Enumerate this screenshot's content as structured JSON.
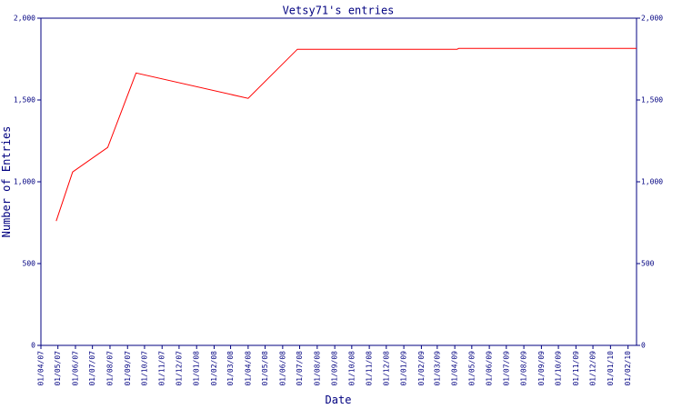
{
  "chart_data": {
    "type": "line",
    "title": "Vetsy71's entries",
    "x_label": "Date",
    "y_label": "Number of Entries",
    "x": [
      "2007-04-28",
      "2007-05-27",
      "2007-07-28",
      "2007-09-16",
      "2008-04-01",
      "2008-06-27",
      "2009-04-05",
      "2009-04-08",
      "2010-02-16"
    ],
    "series": [
      {
        "name": "Vetsy71",
        "color": "#ff0000",
        "values": [
          760,
          1060,
          1210,
          1665,
          1510,
          1810,
          1810,
          1815,
          1815
        ]
      }
    ],
    "xlim": [
      "2007-04-01",
      "2010-02-16"
    ],
    "xticks": [
      {
        "value": "2007-04-01",
        "label": "01/04/07"
      },
      {
        "value": "2007-05-01",
        "label": "01/05/07"
      },
      {
        "value": "2007-06-01",
        "label": "01/06/07"
      },
      {
        "value": "2007-07-01",
        "label": "01/07/07"
      },
      {
        "value": "2007-08-01",
        "label": "01/08/07"
      },
      {
        "value": "2007-09-01",
        "label": "01/09/07"
      },
      {
        "value": "2007-10-01",
        "label": "01/10/07"
      },
      {
        "value": "2007-11-01",
        "label": "01/11/07"
      },
      {
        "value": "2007-12-01",
        "label": "01/12/07"
      },
      {
        "value": "2008-01-01",
        "label": "01/01/08"
      },
      {
        "value": "2008-02-01",
        "label": "01/02/08"
      },
      {
        "value": "2008-03-01",
        "label": "01/03/08"
      },
      {
        "value": "2008-04-01",
        "label": "01/04/08"
      },
      {
        "value": "2008-05-01",
        "label": "01/05/08"
      },
      {
        "value": "2008-06-01",
        "label": "01/06/08"
      },
      {
        "value": "2008-07-01",
        "label": "01/07/08"
      },
      {
        "value": "2008-08-01",
        "label": "01/08/08"
      },
      {
        "value": "2008-09-01",
        "label": "01/09/08"
      },
      {
        "value": "2008-10-01",
        "label": "01/10/08"
      },
      {
        "value": "2008-11-01",
        "label": "01/11/08"
      },
      {
        "value": "2008-12-01",
        "label": "01/12/08"
      },
      {
        "value": "2009-01-01",
        "label": "01/01/09"
      },
      {
        "value": "2009-02-01",
        "label": "01/02/09"
      },
      {
        "value": "2009-03-01",
        "label": "01/03/09"
      },
      {
        "value": "2009-04-01",
        "label": "01/04/09"
      },
      {
        "value": "2009-05-01",
        "label": "01/05/09"
      },
      {
        "value": "2009-06-01",
        "label": "01/06/09"
      },
      {
        "value": "2009-07-01",
        "label": "01/07/09"
      },
      {
        "value": "2009-08-01",
        "label": "01/08/09"
      },
      {
        "value": "2009-09-01",
        "label": "01/09/09"
      },
      {
        "value": "2009-10-01",
        "label": "01/10/09"
      },
      {
        "value": "2009-11-01",
        "label": "01/11/09"
      },
      {
        "value": "2009-12-01",
        "label": "01/12/09"
      },
      {
        "value": "2010-01-01",
        "label": "01/01/10"
      },
      {
        "value": "2010-02-01",
        "label": "01/02/10"
      }
    ],
    "ylim": [
      0,
      2000
    ],
    "yticks": [
      0,
      500,
      {
        "value": 1000,
        "label": "1,000"
      },
      {
        "value": 1500,
        "label": "1,500"
      },
      {
        "value": 2000,
        "label": "2,000"
      }
    ],
    "y2lim": [
      0,
      2000
    ],
    "y2ticks": [
      0,
      500,
      {
        "value": 1000,
        "label": "1,000"
      },
      {
        "value": 1500,
        "label": "1,500"
      },
      {
        "value": 2000,
        "label": "2,000"
      }
    ],
    "axis_color": "#000080"
  }
}
